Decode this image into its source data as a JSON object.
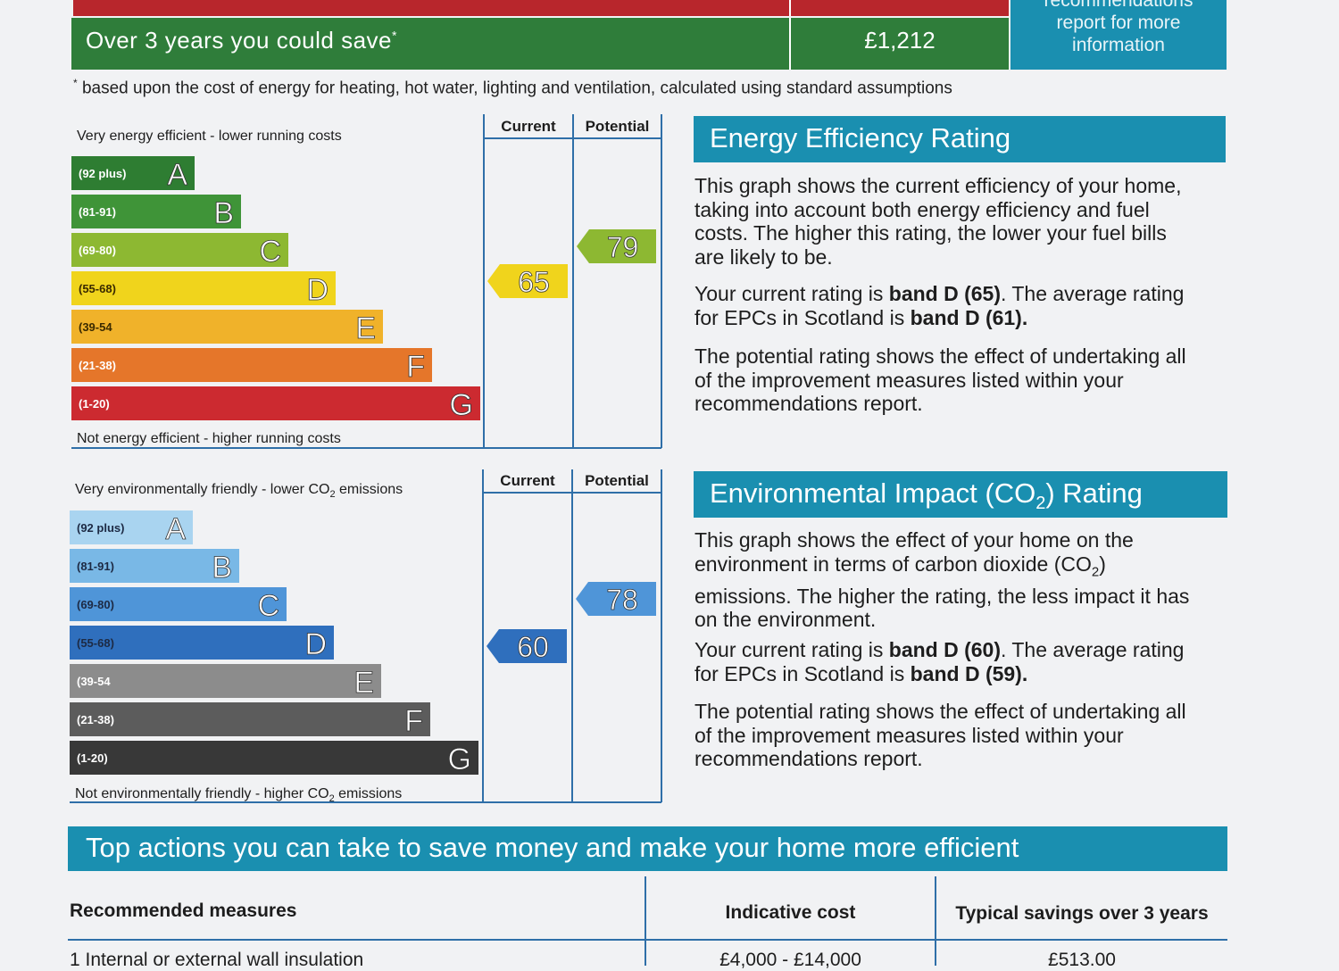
{
  "savings": {
    "label": "Over 3 years you could save",
    "marker": "*",
    "value": "£1,212",
    "recommendations_lines": [
      "recommendations",
      "report for more",
      "information"
    ],
    "footnote_marker": "*",
    "footnote": "based upon the cost of energy for heating, hot water, lighting and ventilation, calculated using standard assumptions"
  },
  "energy_chart": {
    "top_label": "Very energy efficient - lower running costs",
    "bottom_label": "Not energy efficient - higher running costs",
    "current_header": "Current",
    "potential_header": "Potential",
    "bands": [
      {
        "range": "(92 plus)",
        "letter": "A",
        "color": "#2e7d32"
      },
      {
        "range": "(81-91)",
        "letter": "B",
        "color": "#3f9438"
      },
      {
        "range": "(69-80)",
        "letter": "C",
        "color": "#8db832"
      },
      {
        "range": "(55-68)",
        "letter": "D",
        "color": "#f0d41c"
      },
      {
        "range": "(39-54",
        "letter": "E",
        "color": "#f0b22a"
      },
      {
        "range": "(21-38)",
        "letter": "F",
        "color": "#e5762a"
      },
      {
        "range": "(1-20)",
        "letter": "G",
        "color": "#cc2a30"
      }
    ],
    "current": {
      "value": 65,
      "band_index": 3,
      "color": "#f0d41c"
    },
    "potential": {
      "value": 79,
      "band_index": 2,
      "color": "#8db832"
    }
  },
  "co2_chart": {
    "top_label": "Very environmentally friendly - lower CO",
    "top_label_suffix": " emissions",
    "bottom_label": "Not environmentally friendly - higher CO",
    "bottom_label_suffix": " emissions",
    "subscript": "2",
    "current_header": "Current",
    "potential_header": "Potential",
    "bands": [
      {
        "range": "(92 plus)",
        "letter": "A",
        "color": "#a9d4f0"
      },
      {
        "range": "(81-91)",
        "letter": "B",
        "color": "#79b8e6"
      },
      {
        "range": "(69-80)",
        "letter": "C",
        "color": "#4f95d8"
      },
      {
        "range": "(55-68)",
        "letter": "D",
        "color": "#2f6fbd"
      },
      {
        "range": "(39-54",
        "letter": "E",
        "color": "#8c8c8c"
      },
      {
        "range": "(21-38)",
        "letter": "F",
        "color": "#5c5c5c"
      },
      {
        "range": "(1-20)",
        "letter": "G",
        "color": "#383838"
      }
    ],
    "current": {
      "value": 60,
      "band_index": 3,
      "color": "#2f6fbd"
    },
    "potential": {
      "value": 78,
      "band_index": 2,
      "color": "#4f95d8"
    }
  },
  "eer_panel": {
    "title": "Energy Efficiency Rating",
    "para1_lines": [
      "This graph shows the current efficiency of your home,",
      "taking into account both energy efficiency and fuel",
      "costs. The higher this rating, the lower your fuel bills",
      "are likely to be."
    ],
    "p2_a": "Your current rating is ",
    "p2_b": "band D (65)",
    "p2_c": ". The average rating",
    "p2_d": "for EPCs in Scotland is ",
    "p2_e": "band D (61).",
    "para3_lines": [
      "The potential rating shows the effect of undertaking all",
      "of the improvement measures listed within your",
      "recommendations report."
    ]
  },
  "eir_panel": {
    "title_a": "Environmental Impact (CO",
    "title_sub": "2",
    "title_b": ") Rating",
    "p1_l1": "This graph shows the effect of your home on the",
    "p1_l2a": "environment in terms of carbon dioxide (CO",
    "p1_l2sub": "2",
    "p1_l2b": ")",
    "p1_l3": "emissions. The higher the rating, the less impact it has",
    "p1_l4": "on the environment.",
    "p2_a": "Your current rating is ",
    "p2_b": "band D (60)",
    "p2_c": ". The average rating",
    "p2_d": "for EPCs in Scotland is ",
    "p2_e": "band D (59).",
    "para3_lines": [
      "The potential rating shows the effect of undertaking all",
      "of the improvement measures listed within your",
      "recommendations report."
    ]
  },
  "actions": {
    "title": "Top actions you can take to save money and make your home more efficient",
    "col_measures": "Recommended measures",
    "col_cost": "Indicative cost",
    "col_savings": "Typical savings over 3 years",
    "rows": [
      {
        "measure": "1 Internal or external wall insulation",
        "cost": "£4,000 - £14,000",
        "savings": "£513.00"
      }
    ]
  }
}
